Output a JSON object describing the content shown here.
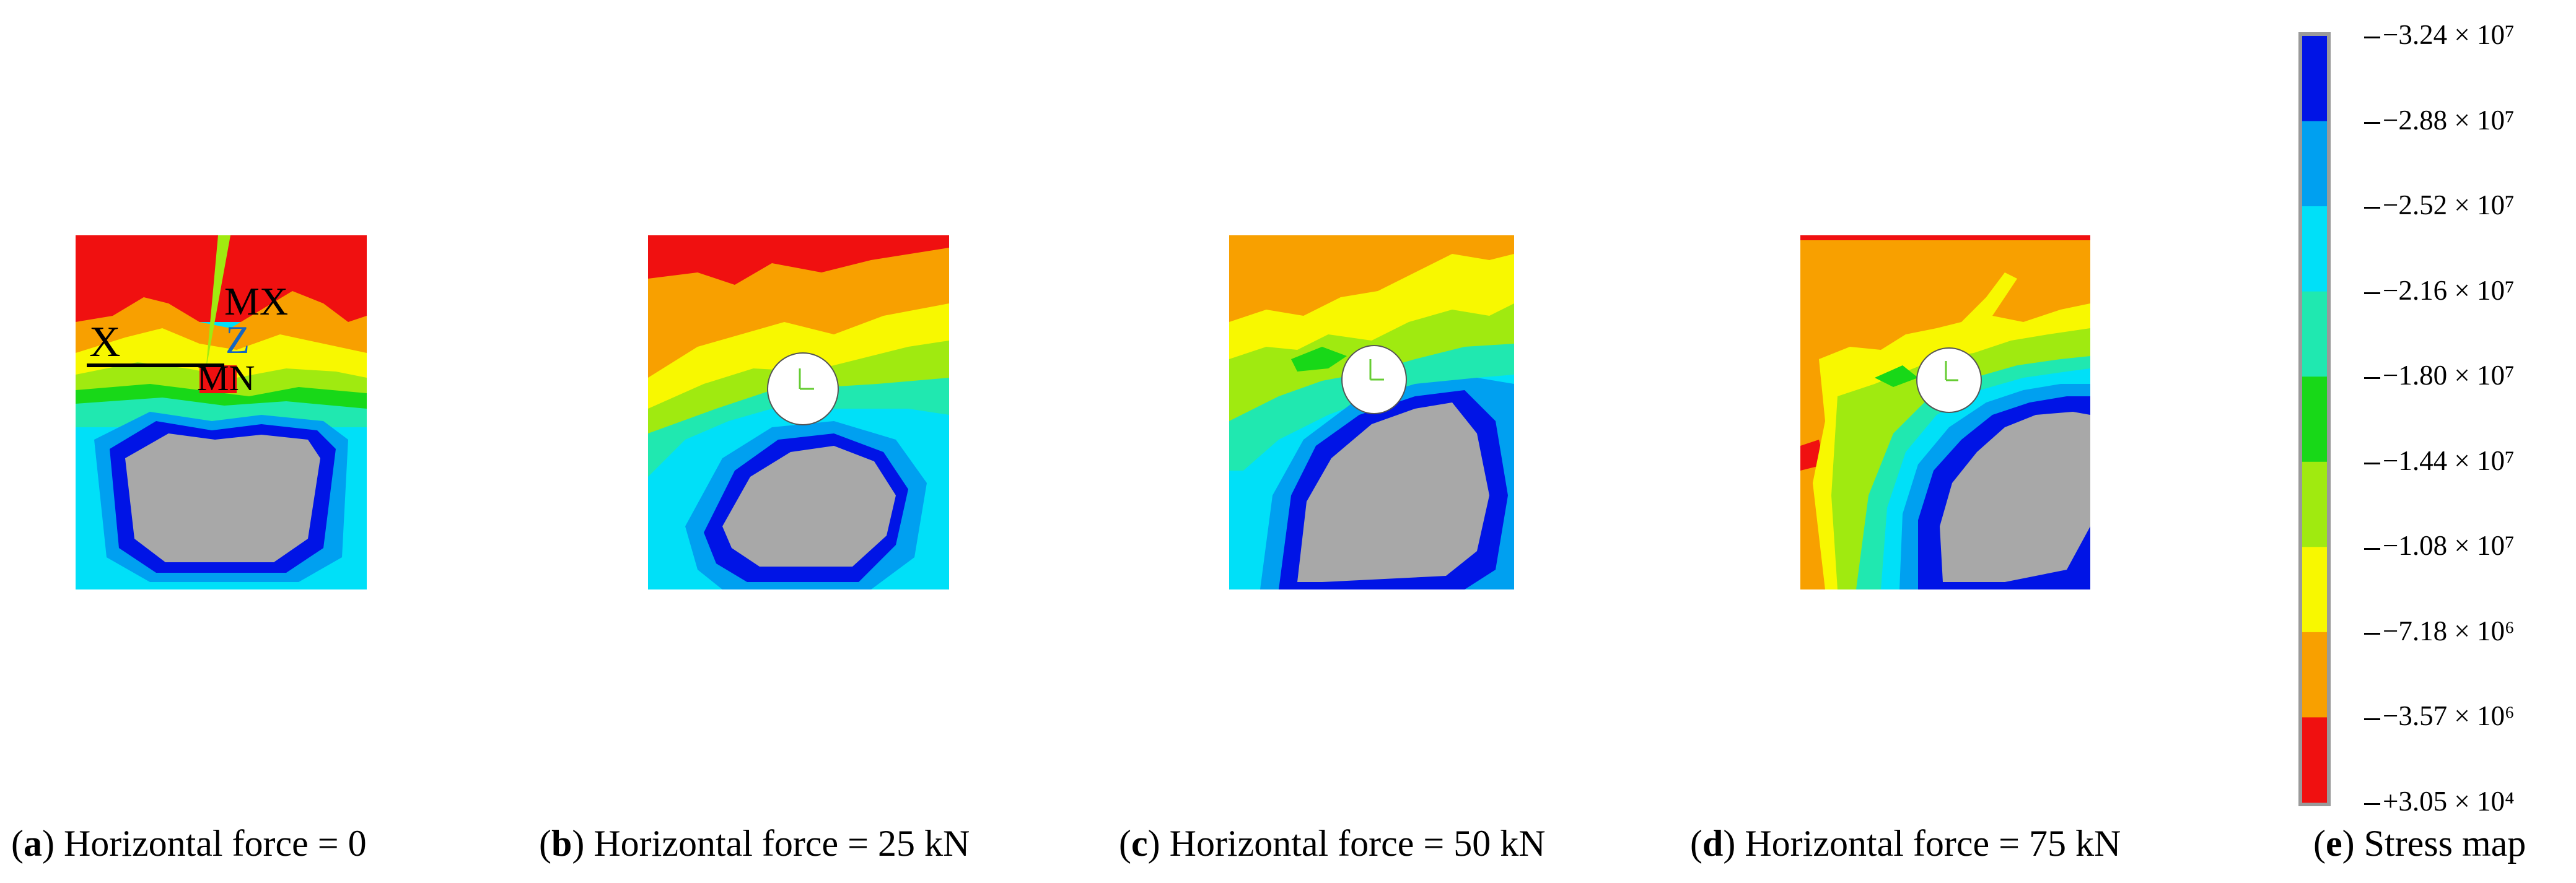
{
  "panels": [
    {
      "letter": "a",
      "text": "Horizontal force = 0"
    },
    {
      "letter": "b",
      "text": "Horizontal force = 25 kN"
    },
    {
      "letter": "c",
      "text": "Horizontal force = 50 kN"
    },
    {
      "letter": "d",
      "text": "Horizontal force = 75 kN"
    },
    {
      "letter": "e",
      "text": "Stress map"
    }
  ],
  "panel_a_labels": {
    "mx": "MX",
    "x": "X",
    "z": "Z",
    "mn": "MN"
  },
  "legend": {
    "colors": [
      "#0014e6",
      "#00a0f0",
      "#00e0f8",
      "#20e8b0",
      "#18d818",
      "#a0ea10",
      "#f8f800",
      "#f8a000",
      "#f01010"
    ],
    "tick_labels": [
      "−3.24 × 10⁷",
      "−2.88 × 10⁷",
      "−2.52 × 10⁷",
      "−2.16 × 10⁷",
      "−1.80 × 10⁷",
      "−1.44 × 10⁷",
      "−1.08 × 10⁷",
      "−7.18 × 10⁶",
      "−3.57 × 10⁶",
      "+3.05 × 10⁴"
    ]
  }
}
